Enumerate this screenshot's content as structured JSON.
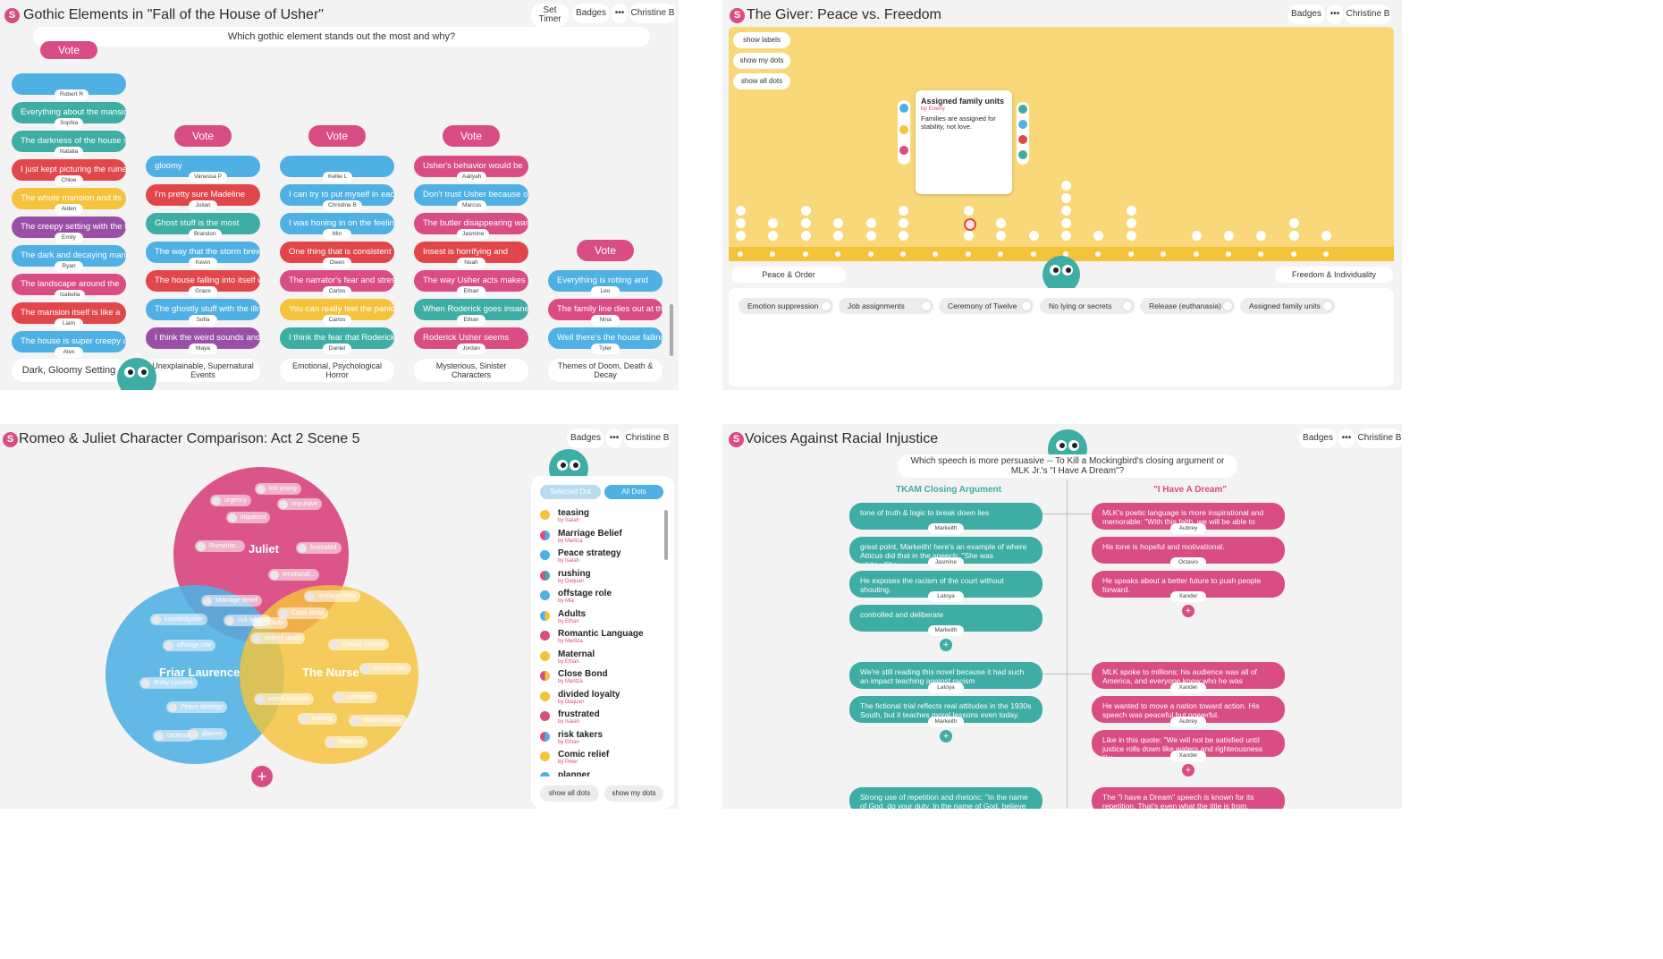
{
  "common": {
    "badges": "Badges",
    "more": "•••",
    "user": "Christine B",
    "logo": "S"
  },
  "p1": {
    "title": "Gothic Elements in \"Fall of the House of Usher\"",
    "set_timer": "Set Timer",
    "prompt": "Which gothic element stands out the most and why?",
    "vote": "Vote",
    "columns": [
      {
        "footer": "Dark, Gloomy Setting",
        "cards": [
          {
            "text": "",
            "name": "Robert R",
            "color": "blue"
          },
          {
            "text": "Everything about the mansion is",
            "name": "Sophia",
            "color": "teal"
          },
          {
            "text": "The darkness of the house set",
            "name": "Natalia",
            "color": "teal"
          },
          {
            "text": "I just kept picturing the ruined",
            "name": "Chloe",
            "color": "red"
          },
          {
            "text": "The whole mansion and its",
            "name": "Aiden",
            "color": "yellow"
          },
          {
            "text": "The creepy setting with the fog",
            "name": "Emily",
            "color": "purple"
          },
          {
            "text": "The dark and decaying mansion",
            "name": "Ryan",
            "color": "blue"
          },
          {
            "text": "The landscape around the",
            "name": "Isabella",
            "color": "pink"
          },
          {
            "text": "The mansion itself is like a",
            "name": "Liam",
            "color": "red"
          },
          {
            "text": "The house is super creepy and",
            "name": "Alex",
            "color": "blue"
          }
        ]
      },
      {
        "footer": "Unexplainable, Supernatural Events",
        "cards": [
          {
            "text": "gloomy",
            "name": "Vanessa P",
            "color": "blue"
          },
          {
            "text": "I'm pretty sure Madeline",
            "name": "Julian",
            "color": "red"
          },
          {
            "text": "Ghost stuff is the most",
            "name": "Brandon",
            "color": "teal"
          },
          {
            "text": "The way that the storm brewed",
            "name": "Kevin",
            "color": "blue"
          },
          {
            "text": "The house falling into itself with",
            "name": "Grace",
            "color": "red"
          },
          {
            "text": "The ghostly stuff with the illness",
            "name": "Sofia",
            "color": "blue"
          },
          {
            "text": "I think the weird sounds and",
            "name": "Maya",
            "color": "purple"
          }
        ]
      },
      {
        "footer": "Emotional, Psychological Horror",
        "cards": [
          {
            "text": "",
            "name": "Kellie L",
            "color": "blue"
          },
          {
            "text": "I can try to put myself in each",
            "name": "Christine B",
            "color": "blue"
          },
          {
            "text": "I was honing in on the feeling of",
            "name": "Min",
            "color": "blue"
          },
          {
            "text": "One thing that is consistent in",
            "name": "Owen",
            "color": "red"
          },
          {
            "text": "The narrator's fear and stress",
            "name": "Carlos",
            "color": "pink"
          },
          {
            "text": "You can really feel the panic in",
            "name": "Carlos",
            "color": "yellow"
          },
          {
            "text": "I think the fear that Roderick",
            "name": "Daniel",
            "color": "teal"
          }
        ]
      },
      {
        "footer": "Mysterious, Sinister Characters",
        "cards": [
          {
            "text": "Usher's behavior would be",
            "name": "Aaliyah",
            "color": "pink"
          },
          {
            "text": "Don't trust Usher because of his",
            "name": "Marcus",
            "color": "blue"
          },
          {
            "text": "The butler disappearing was a",
            "name": "Jasmine",
            "color": "pink"
          },
          {
            "text": "Insest is horrifying and",
            "name": "Noah",
            "color": "red"
          },
          {
            "text": "The way Usher acts makes me",
            "name": "Ethan",
            "color": "pink"
          },
          {
            "text": "When Roderick goes insane, he",
            "name": "Ethan",
            "color": "teal"
          },
          {
            "text": "Roderick Usher seems",
            "name": "Jordan",
            "color": "pink"
          }
        ]
      },
      {
        "footer": "Themes of Doom, Death & Decay",
        "cards": [
          {
            "text": "Everything is rotting and",
            "name": "Leo",
            "color": "blue"
          },
          {
            "text": "The family line dies out at the",
            "name": "Nina",
            "color": "pink"
          },
          {
            "text": "Well there's the house falling at",
            "name": "Tyler",
            "color": "blue"
          }
        ]
      }
    ]
  },
  "p2": {
    "title": "The Giver: Peace vs. Freedom",
    "controls": [
      "show labels",
      "show my dots",
      "show all dots"
    ],
    "popup": {
      "title": "Assigned family units",
      "by": "by Everly",
      "body": "Families are assigned for stability, not love."
    },
    "left_label": "Peace & Order",
    "right_label": "Freedom & Individuality",
    "dot_counts": [
      3,
      2,
      3,
      2,
      2,
      3,
      0,
      3,
      2,
      1,
      5,
      1,
      3,
      0,
      1,
      1,
      1,
      2,
      1
    ],
    "tags": [
      "Emotion suppression",
      "Job assignments",
      "Ceremony of Twelve",
      "No lying or secrets",
      "Release (euthanasia)",
      "Assigned family units"
    ]
  },
  "p3": {
    "title": "Romeo & Juliet Character Comparison: Act 2 Scene 5",
    "circles": [
      "Juliet",
      "Friar Laurence",
      "The Nurse"
    ],
    "chips": [
      "too young",
      "urgency",
      "impulsive",
      "impatient",
      "Romantic...",
      "frustrated",
      "emotional...",
      "Adults",
      "Marriage Belief",
      "onstage roles",
      "knowledgable",
      "risk takers",
      "Close Bond",
      "shared goals",
      "offstage role",
      "Casual Speech",
      "Comic relief",
      "Adults",
      "Risky consent",
      "secret keepers",
      "caretaker",
      "Peace strategy",
      "teasing",
      "divided loyalty",
      "cautious",
      "planner",
      "Maternal"
    ],
    "tabs": [
      "Selected Dot",
      "All Dots"
    ],
    "list": [
      {
        "label": "teasing",
        "by": "by Isaiah",
        "colors": [
          "#f5c33b"
        ]
      },
      {
        "label": "Marriage Belief",
        "by": "by Maritza",
        "colors": [
          "#d94c84",
          "#4fb0e3"
        ]
      },
      {
        "label": "Peace strategy",
        "by": "by Isaiah",
        "colors": [
          "#4fb0e3"
        ]
      },
      {
        "label": "rushing",
        "by": "by Daquan",
        "colors": [
          "#d94c84",
          "#3eada3"
        ]
      },
      {
        "label": "offstage role",
        "by": "by Mia",
        "colors": [
          "#4fb0e3"
        ]
      },
      {
        "label": "Adults",
        "by": "by Ethan",
        "colors": [
          "#4fb0e3",
          "#f5c33b"
        ]
      },
      {
        "label": "Romantic Language",
        "by": "by Maritza",
        "colors": [
          "#d94c84"
        ]
      },
      {
        "label": "Maternal",
        "by": "by Ethan",
        "colors": [
          "#f5c33b"
        ]
      },
      {
        "label": "Close Bond",
        "by": "by Maritza",
        "colors": [
          "#d94c84",
          "#f5c33b"
        ]
      },
      {
        "label": "divided loyalty",
        "by": "by Daquan",
        "colors": [
          "#f5c33b"
        ]
      },
      {
        "label": "frustrated",
        "by": "by Isaiah",
        "colors": [
          "#d94c84"
        ]
      },
      {
        "label": "risk takers",
        "by": "by Ethan",
        "colors": [
          "#d94c84",
          "#4fb0e3"
        ]
      },
      {
        "label": "Comic relief",
        "by": "by Peter",
        "colors": [
          "#f5c33b"
        ]
      },
      {
        "label": "planner",
        "by": "",
        "colors": [
          "#4fb0e3"
        ]
      }
    ],
    "show_all": "show all dots",
    "show_mine": "show my dots",
    "add": "+"
  },
  "p4": {
    "title": "Voices Against Racial Injustice",
    "prompt": "Which speech is more persuasive -- To Kill a Mockingbird's closing argument or MLK Jr.'s \"I Have A Dream\"?",
    "left_head": "TKAM Closing Argument",
    "right_head": "\"I Have A Dream\"",
    "add": "+",
    "left": [
      {
        "text": "tone of truth & logic to break down lies",
        "name": "Markeith"
      },
      {
        "text": "great point, Markeith! here's an example of where Atticus did that in the speech: \"She was white...She",
        "name": "Jasmine"
      },
      {
        "text": "He exposes the racism of the court without shouting.",
        "name": "Latoya"
      },
      {
        "text": "controlled and deliberate",
        "name": "Markeith"
      },
      {
        "text": "We're still reading this novel because it had such an impact teaching against racism",
        "name": "Latoya"
      },
      {
        "text": "The fictional trial reflects real attitudes in the 1930s South, but it teaches moral lessons even today.",
        "name": "Markeith"
      },
      {
        "text": "Strong use of repetition and rhetoric: \"In the name of God, do your duty. In the name of God, believe",
        "name": ""
      }
    ],
    "right": [
      {
        "text": "MLK's poetic language is more inspirational and memorable: \"With this faith, we will be able to",
        "name": "Aubrey"
      },
      {
        "text": "His tone is hopeful and motivational.",
        "name": "Octavio"
      },
      {
        "text": "He speaks about a better future to push people forward.",
        "name": "Xander"
      },
      {
        "text": "MLK spoke to millions; his audience was all of America, and everyone knew who he was",
        "name": "Xander"
      },
      {
        "text": "He wanted to move a nation toward action. His speech was peaceful but powerful.",
        "name": "Aubrey"
      },
      {
        "text": "Like in this quote: \"We will not be satisfied until justice rolls down like waters and righteousness like",
        "name": "Xander"
      },
      {
        "text": "The \"I have a Dream\" speech is known for its repetition. That's even what the title is from.",
        "name": ""
      }
    ]
  }
}
